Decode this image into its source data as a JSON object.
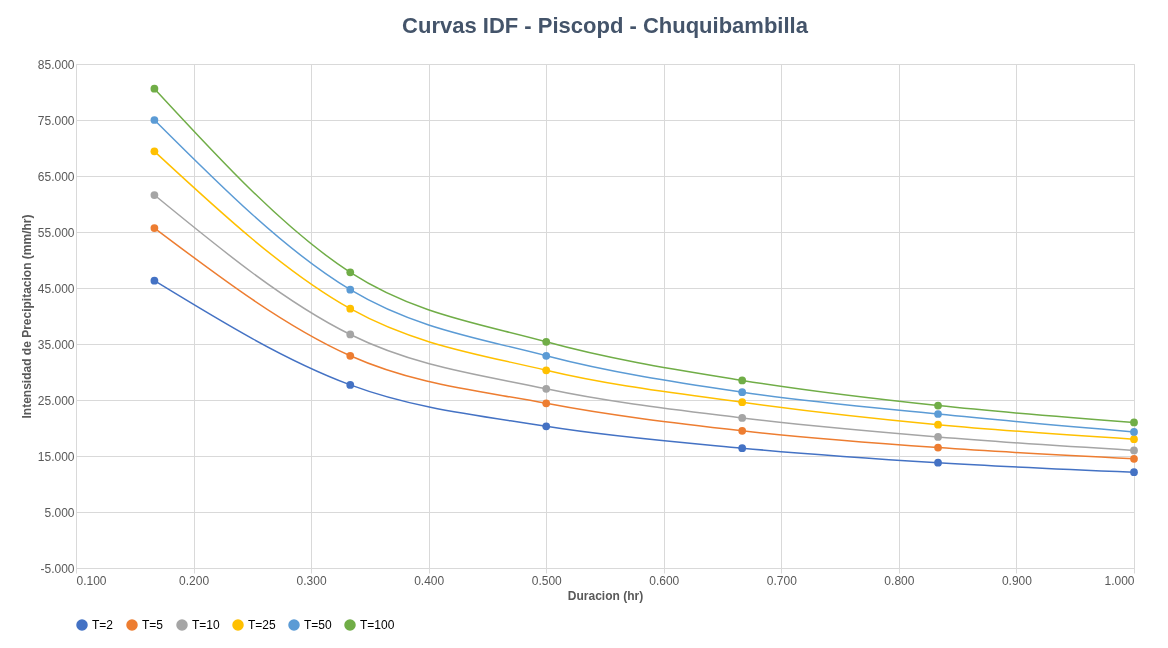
{
  "chart_data": {
    "type": "line",
    "title": "Curvas IDF - Piscopd - Chuquibambilla",
    "xlabel": "Duracion (hr)",
    "ylabel": "Intensidad de Precipitacion (mm/hr)",
    "x": [
      0.1667,
      0.3333,
      0.5,
      0.6667,
      0.8333,
      1.0
    ],
    "series": [
      {
        "name": "T=2",
        "color": "#4472c4",
        "values": [
          46.3,
          27.7,
          20.3,
          16.4,
          13.8,
          12.1
        ]
      },
      {
        "name": "T=5",
        "color": "#ed7d31",
        "values": [
          55.7,
          32.9,
          24.4,
          19.5,
          16.5,
          14.5
        ]
      },
      {
        "name": "T=10",
        "color": "#a5a5a5",
        "values": [
          61.6,
          36.7,
          27.0,
          21.8,
          18.4,
          16.0
        ]
      },
      {
        "name": "T=25",
        "color": "#ffc000",
        "values": [
          69.4,
          41.3,
          30.3,
          24.6,
          20.6,
          18.0
        ]
      },
      {
        "name": "T=50",
        "color": "#5b9bd5",
        "values": [
          75.0,
          44.7,
          32.9,
          26.4,
          22.5,
          19.3
        ]
      },
      {
        "name": "T=100",
        "color": "#70ad47",
        "values": [
          80.6,
          47.8,
          35.4,
          28.5,
          24.0,
          21.0
        ]
      }
    ],
    "xlim": [
      0.1,
      1.0
    ],
    "xticks": [
      {
        "value": 0.1,
        "label": "0.100"
      },
      {
        "value": 0.2,
        "label": "0.200"
      },
      {
        "value": 0.3,
        "label": "0.300"
      },
      {
        "value": 0.4,
        "label": "0.400"
      },
      {
        "value": 0.5,
        "label": "0.500"
      },
      {
        "value": 0.6,
        "label": "0.600"
      },
      {
        "value": 0.7,
        "label": "0.700"
      },
      {
        "value": 0.8,
        "label": "0.800"
      },
      {
        "value": 0.9,
        "label": "0.900"
      },
      {
        "value": 1.0,
        "label": "1.000"
      }
    ],
    "ylim": [
      -5,
      85
    ],
    "yticks": [
      {
        "value": -5,
        "label": "-5.000"
      },
      {
        "value": 5,
        "label": "5.000"
      },
      {
        "value": 15,
        "label": "15.000"
      },
      {
        "value": 25,
        "label": "25.000"
      },
      {
        "value": 35,
        "label": "35.000"
      },
      {
        "value": 45,
        "label": "45.000"
      },
      {
        "value": 55,
        "label": "55.000"
      },
      {
        "value": 65,
        "label": "65.000"
      },
      {
        "value": 75,
        "label": "75.000"
      },
      {
        "value": 85,
        "label": "85.000"
      }
    ],
    "grid": true,
    "legend": "bottom",
    "marker": "circle",
    "line_style": "solid"
  }
}
